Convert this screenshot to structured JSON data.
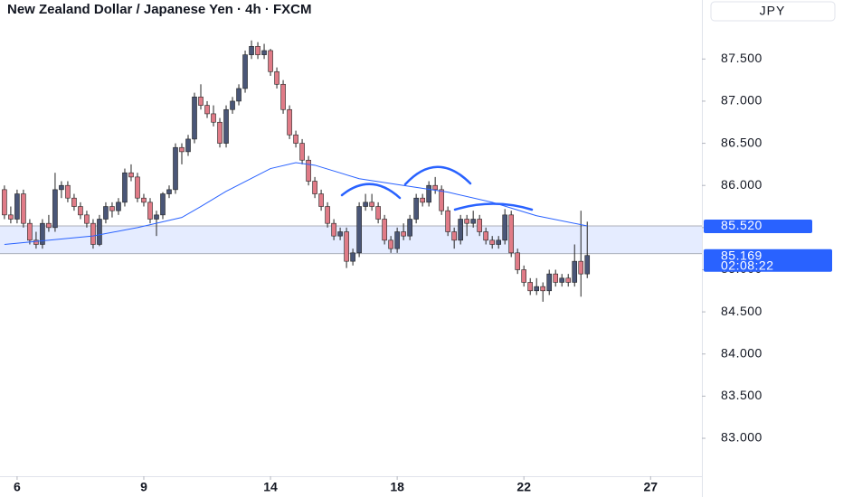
{
  "chart_data": {
    "type": "candlestick",
    "title": "New Zealand Dollar / Japanese Yen · 4h · FXCM",
    "currency": "JPY",
    "up_color": "#4a5677",
    "down_color": "#e07b87",
    "wick_color": "#222222",
    "grid": false,
    "ylim": [
      82.55,
      88.2
    ],
    "yticks": [
      {
        "value": 83,
        "label": "83.000"
      },
      {
        "value": 83.5,
        "label": "83.500"
      },
      {
        "value": 84,
        "label": "84.000"
      },
      {
        "value": 84.5,
        "label": "84.500"
      },
      {
        "value": 85,
        "label": "85.000"
      },
      {
        "value": 85.5,
        "label": "85.500"
      },
      {
        "value": 86,
        "label": "86.000"
      },
      {
        "value": 86.5,
        "label": "86.500"
      },
      {
        "value": 87,
        "label": "87.000"
      },
      {
        "value": 87.5,
        "label": "87.500"
      }
    ],
    "xlim": [
      -0.7,
      110.1
    ],
    "xticks": [
      {
        "value": 2,
        "label": "6"
      },
      {
        "value": 22,
        "label": "9"
      },
      {
        "value": 42,
        "label": "14"
      },
      {
        "value": 62,
        "label": "18"
      },
      {
        "value": 82,
        "label": "22"
      },
      {
        "value": 102,
        "label": "27"
      }
    ],
    "ohlc": [
      [
        85.95,
        86.0,
        85.6,
        85.65
      ],
      [
        85.65,
        85.75,
        85.55,
        85.6
      ],
      [
        85.6,
        85.95,
        85.55,
        85.9
      ],
      [
        85.9,
        85.95,
        85.5,
        85.55
      ],
      [
        85.55,
        85.6,
        85.3,
        85.35
      ],
      [
        85.35,
        85.45,
        85.25,
        85.3
      ],
      [
        85.3,
        85.6,
        85.25,
        85.55
      ],
      [
        85.55,
        85.65,
        85.45,
        85.5
      ],
      [
        85.5,
        86.15,
        85.45,
        85.95
      ],
      [
        85.95,
        86.05,
        85.85,
        86.0
      ],
      [
        86.0,
        86.05,
        85.8,
        85.85
      ],
      [
        85.85,
        85.9,
        85.7,
        85.75
      ],
      [
        85.75,
        85.8,
        85.6,
        85.65
      ],
      [
        85.65,
        85.7,
        85.5,
        85.55
      ],
      [
        85.55,
        85.6,
        85.25,
        85.3
      ],
      [
        85.3,
        85.65,
        85.28,
        85.6
      ],
      [
        85.6,
        85.8,
        85.55,
        85.75
      ],
      [
        85.75,
        85.8,
        85.62,
        85.7
      ],
      [
        85.7,
        85.85,
        85.65,
        85.8
      ],
      [
        85.8,
        86.2,
        85.75,
        86.15
      ],
      [
        86.15,
        86.25,
        86.05,
        86.1
      ],
      [
        86.1,
        86.15,
        85.8,
        85.85
      ],
      [
        85.85,
        85.9,
        85.75,
        85.8
      ],
      [
        85.8,
        85.85,
        85.55,
        85.6
      ],
      [
        85.6,
        85.7,
        85.4,
        85.65
      ],
      [
        85.65,
        85.92,
        85.6,
        85.9
      ],
      [
        85.9,
        86.0,
        85.85,
        85.95
      ],
      [
        85.95,
        86.5,
        85.9,
        86.45
      ],
      [
        86.45,
        86.5,
        86.25,
        86.4
      ],
      [
        86.4,
        86.6,
        86.35,
        86.55
      ],
      [
        86.55,
        87.1,
        86.5,
        87.05
      ],
      [
        87.05,
        87.2,
        86.9,
        86.95
      ],
      [
        86.95,
        87.0,
        86.8,
        86.85
      ],
      [
        86.85,
        86.95,
        86.7,
        86.75
      ],
      [
        86.75,
        86.8,
        86.45,
        86.5
      ],
      [
        86.5,
        86.95,
        86.45,
        86.9
      ],
      [
        86.9,
        87.05,
        86.85,
        87.0
      ],
      [
        87.0,
        87.2,
        86.95,
        87.15
      ],
      [
        87.15,
        87.6,
        87.1,
        87.55
      ],
      [
        87.55,
        87.72,
        87.5,
        87.65
      ],
      [
        87.65,
        87.7,
        87.5,
        87.55
      ],
      [
        87.55,
        87.68,
        87.5,
        87.6
      ],
      [
        87.6,
        87.62,
        87.3,
        87.35
      ],
      [
        87.35,
        87.4,
        87.15,
        87.2
      ],
      [
        87.2,
        87.25,
        86.85,
        86.9
      ],
      [
        86.9,
        86.95,
        86.55,
        86.6
      ],
      [
        86.6,
        86.65,
        86.45,
        86.5
      ],
      [
        86.5,
        86.55,
        86.25,
        86.3
      ],
      [
        86.3,
        86.35,
        86.0,
        86.05
      ],
      [
        86.05,
        86.1,
        85.85,
        85.9
      ],
      [
        85.9,
        85.95,
        85.7,
        85.75
      ],
      [
        85.75,
        85.8,
        85.5,
        85.55
      ],
      [
        85.55,
        85.6,
        85.35,
        85.4
      ],
      [
        85.4,
        85.5,
        85.35,
        85.45
      ],
      [
        85.45,
        85.5,
        85.02,
        85.1
      ],
      [
        85.1,
        85.25,
        85.05,
        85.2
      ],
      [
        85.2,
        85.8,
        85.15,
        85.75
      ],
      [
        85.75,
        85.9,
        85.7,
        85.8
      ],
      [
        85.8,
        85.9,
        85.7,
        85.75
      ],
      [
        85.75,
        85.8,
        85.55,
        85.6
      ],
      [
        85.6,
        85.65,
        85.3,
        85.35
      ],
      [
        85.35,
        85.4,
        85.2,
        85.25
      ],
      [
        85.25,
        85.5,
        85.2,
        85.45
      ],
      [
        85.45,
        85.55,
        85.35,
        85.4
      ],
      [
        85.4,
        85.65,
        85.35,
        85.6
      ],
      [
        85.6,
        85.9,
        85.55,
        85.85
      ],
      [
        85.85,
        85.9,
        85.75,
        85.8
      ],
      [
        85.8,
        86.05,
        85.75,
        86.0
      ],
      [
        86.0,
        86.1,
        85.9,
        85.95
      ],
      [
        85.95,
        86.0,
        85.65,
        85.7
      ],
      [
        85.7,
        85.75,
        85.4,
        85.45
      ],
      [
        85.45,
        85.5,
        85.25,
        85.35
      ],
      [
        85.35,
        85.65,
        85.3,
        85.6
      ],
      [
        85.6,
        85.65,
        85.4,
        85.55
      ],
      [
        85.55,
        85.7,
        85.5,
        85.6
      ],
      [
        85.6,
        85.65,
        85.4,
        85.45
      ],
      [
        85.45,
        85.5,
        85.3,
        85.35
      ],
      [
        85.35,
        85.4,
        85.25,
        85.3
      ],
      [
        85.3,
        85.4,
        85.25,
        85.35
      ],
      [
        85.35,
        85.72,
        85.3,
        85.65
      ],
      [
        85.65,
        85.7,
        85.15,
        85.2
      ],
      [
        85.2,
        85.25,
        84.95,
        85.0
      ],
      [
        85.0,
        85.05,
        84.8,
        84.85
      ],
      [
        84.85,
        84.9,
        84.7,
        84.75
      ],
      [
        84.75,
        84.9,
        84.7,
        84.8
      ],
      [
        84.8,
        84.85,
        84.62,
        84.75
      ],
      [
        84.75,
        85.0,
        84.7,
        84.95
      ],
      [
        84.95,
        85.0,
        84.8,
        84.85
      ],
      [
        84.85,
        84.95,
        84.8,
        84.9
      ],
      [
        84.9,
        84.95,
        84.8,
        84.85
      ],
      [
        84.85,
        85.3,
        84.8,
        85.1
      ],
      [
        85.1,
        85.7,
        84.68,
        84.95
      ],
      [
        84.95,
        85.57,
        84.9,
        85.169
      ]
    ],
    "ma": {
      "color": "#2962ff",
      "x": [
        0,
        14,
        21,
        28,
        31,
        35,
        42,
        46,
        49,
        56,
        63,
        70,
        77,
        84,
        92
      ],
      "values": [
        85.3,
        85.4,
        85.5,
        85.62,
        85.75,
        85.93,
        86.2,
        86.27,
        86.24,
        86.08,
        86.0,
        85.92,
        85.8,
        85.64,
        85.52
      ]
    },
    "zone": {
      "low": 85.19,
      "high": {
        "value": 85.52,
        "label": "85.520"
      }
    },
    "last_price": {
      "value": 85.169,
      "label": "85.169",
      "countdown": "02:08:22"
    }
  }
}
